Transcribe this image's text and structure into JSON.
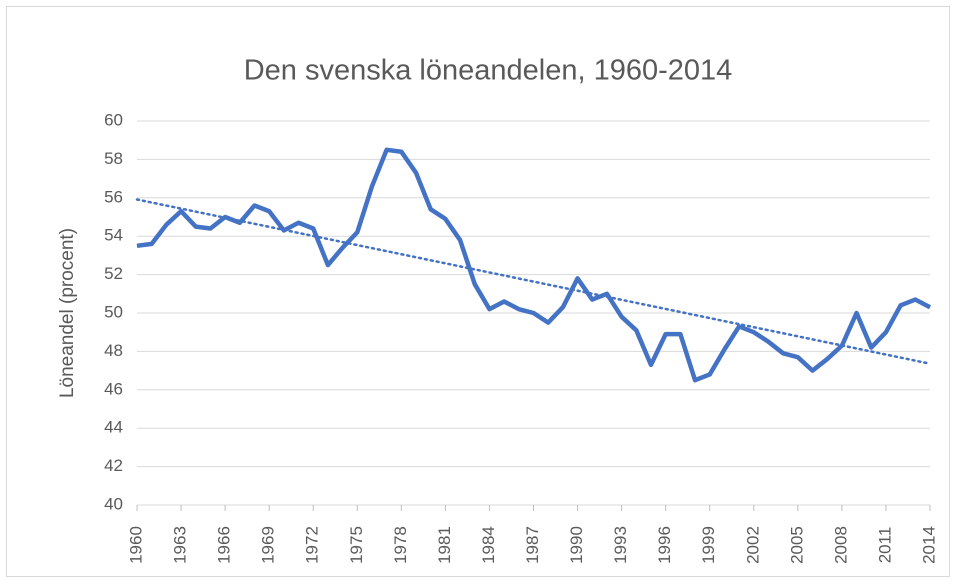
{
  "chart_data": {
    "type": "line",
    "title": "Den svenska löneandelen, 1960-2014",
    "y_label": "Löneandel (procent)",
    "x": [
      1960,
      1961,
      1962,
      1963,
      1964,
      1965,
      1966,
      1967,
      1968,
      1969,
      1970,
      1971,
      1972,
      1973,
      1974,
      1975,
      1976,
      1977,
      1978,
      1979,
      1980,
      1981,
      1982,
      1983,
      1984,
      1985,
      1986,
      1987,
      1988,
      1989,
      1990,
      1991,
      1992,
      1993,
      1994,
      1995,
      1996,
      1997,
      1998,
      1999,
      2000,
      2001,
      2002,
      2003,
      2004,
      2005,
      2006,
      2007,
      2008,
      2009,
      2010,
      2011,
      2012,
      2013,
      2014
    ],
    "series": [
      {
        "color": "#4472c4",
        "values": [
          53.5,
          53.6,
          54.6,
          55.3,
          54.5,
          54.4,
          55.0,
          54.7,
          55.6,
          55.3,
          54.3,
          54.7,
          54.4,
          52.5,
          53.4,
          54.2,
          56.6,
          58.5,
          58.4,
          57.3,
          55.4,
          54.9,
          53.8,
          51.5,
          50.2,
          50.6,
          50.2,
          50.0,
          49.5,
          50.3,
          51.8,
          50.7,
          51.0,
          49.8,
          49.1,
          47.3,
          48.9,
          48.9,
          46.5,
          46.8,
          48.1,
          49.3,
          49.0,
          48.5,
          47.9,
          47.7,
          47.0,
          47.6,
          48.3,
          50.0,
          48.2,
          49.0,
          50.4,
          50.7,
          50.3
        ]
      }
    ],
    "trendline": true,
    "xlim": [
      1960,
      2014
    ],
    "xticks": [
      1960,
      1963,
      1966,
      1969,
      1972,
      1975,
      1978,
      1981,
      1984,
      1987,
      1990,
      1993,
      1996,
      1999,
      2002,
      2005,
      2008,
      2011,
      2014
    ],
    "ylim": [
      40,
      60
    ],
    "yticks": [
      40,
      42,
      44,
      46,
      48,
      50,
      52,
      54,
      56,
      58,
      60
    ],
    "grid": true
  }
}
